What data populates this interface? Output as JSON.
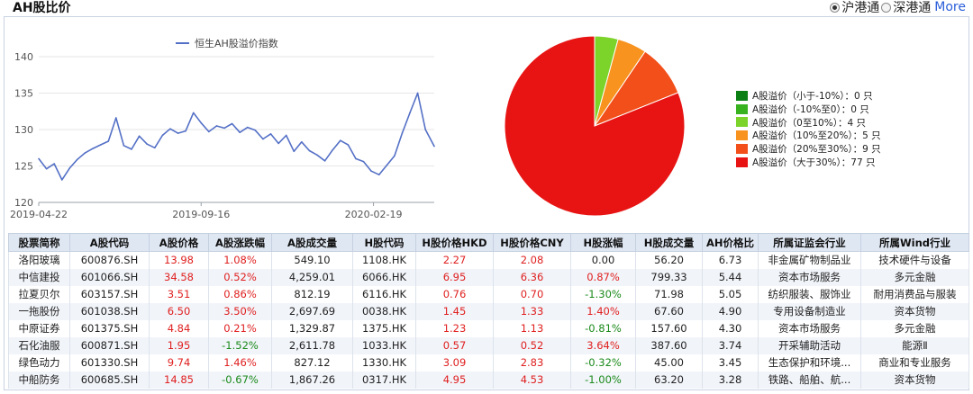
{
  "header": {
    "title": "AH股比价",
    "options": [
      "沪港通",
      "深港通"
    ],
    "selected_option": "沪港通",
    "more_label": "More"
  },
  "chart_data": [
    {
      "type": "line",
      "legend_label": "恒生AH股溢价指数",
      "legend_position": "top",
      "ylim": [
        120,
        140
      ],
      "yticks": [
        120,
        125,
        130,
        135,
        140
      ],
      "xtick_labels": [
        "2019-04-22",
        "2019-09-16",
        "2020-02-19"
      ],
      "xlim": [
        "2019-04-22",
        "2020-04-14"
      ],
      "grid": true,
      "color": "#5470c6",
      "series": [
        {
          "name": "恒生AH股溢价指数",
          "x": [
            "2019-04-22",
            "2019-04-29",
            "2019-05-06",
            "2019-05-13",
            "2019-05-20",
            "2019-05-27",
            "2019-06-03",
            "2019-06-10",
            "2019-06-17",
            "2019-06-24",
            "2019-07-01",
            "2019-07-08",
            "2019-07-15",
            "2019-07-22",
            "2019-07-29",
            "2019-08-05",
            "2019-08-12",
            "2019-08-19",
            "2019-08-26",
            "2019-09-02",
            "2019-09-09",
            "2019-09-16",
            "2019-09-23",
            "2019-09-30",
            "2019-10-07",
            "2019-10-14",
            "2019-10-21",
            "2019-10-28",
            "2019-11-04",
            "2019-11-11",
            "2019-11-18",
            "2019-11-25",
            "2019-12-02",
            "2019-12-09",
            "2019-12-16",
            "2019-12-23",
            "2019-12-30",
            "2020-01-06",
            "2020-01-13",
            "2020-01-20",
            "2020-01-27",
            "2020-02-03",
            "2020-02-10",
            "2020-02-17",
            "2020-02-24",
            "2020-03-02",
            "2020-03-09",
            "2020-03-16",
            "2020-03-23",
            "2020-03-30",
            "2020-04-06",
            "2020-04-14"
          ],
          "values": [
            126.0,
            124.6,
            125.3,
            123.1,
            124.7,
            125.9,
            126.8,
            127.4,
            127.9,
            128.4,
            131.6,
            127.8,
            127.3,
            129.1,
            128.0,
            127.5,
            129.2,
            130.1,
            129.5,
            129.8,
            132.3,
            130.9,
            129.7,
            130.5,
            130.2,
            130.8,
            129.6,
            130.3,
            129.9,
            128.7,
            129.4,
            128.1,
            129.2,
            127.0,
            128.3,
            127.1,
            126.5,
            125.7,
            127.2,
            128.5,
            127.9,
            126.0,
            125.6,
            124.3,
            123.8,
            125.1,
            126.4,
            129.5,
            132.3,
            135.0,
            130.0,
            127.7
          ]
        }
      ]
    },
    {
      "type": "pie",
      "legend_position": "right",
      "slices": [
        {
          "label": "A股溢价（小于-10%）：0 只",
          "value": 0,
          "color": "#0b7f14"
        },
        {
          "label": "A股溢价（-10%至0）：0 只",
          "value": 0,
          "color": "#39b21f"
        },
        {
          "label": "A股溢价（0至10%）：4 只",
          "value": 4,
          "color": "#7cd32a"
        },
        {
          "label": "A股溢价（10%至20%）：5 只",
          "value": 5,
          "color": "#f7931e"
        },
        {
          "label": "A股溢价（20%至30%）：9 只",
          "value": 9,
          "color": "#f24f1a"
        },
        {
          "label": "A股溢价（大于30%）：77 只",
          "value": 77,
          "color": "#e81414"
        }
      ]
    }
  ],
  "table": {
    "headers": [
      "股票简称",
      "A股代码",
      "A股价格",
      "A股涨跌幅",
      "A股成交量",
      "H股代码",
      "H股价格HKD",
      "H股价格CNY",
      "H股涨幅",
      "H股成交量",
      "AH价格比",
      "所属证监会行业",
      "所属Wind行业"
    ],
    "rows": [
      [
        "洛阳玻璃",
        "600876.SH",
        "13.98",
        "1.08%",
        "549.10",
        "1108.HK",
        "2.27",
        "2.08",
        "0.00",
        "56.20",
        "6.73",
        "非金属矿物制品业",
        "技术硬件与设备"
      ],
      [
        "中信建投",
        "601066.SH",
        "34.58",
        "0.52%",
        "4,259.01",
        "6066.HK",
        "6.95",
        "6.36",
        "0.87%",
        "799.33",
        "5.44",
        "资本市场服务",
        "多元金融"
      ],
      [
        "拉夏贝尔",
        "603157.SH",
        "3.51",
        "0.86%",
        "812.19",
        "6116.HK",
        "0.76",
        "0.70",
        "-1.30%",
        "71.98",
        "5.05",
        "纺织服装、服饰业",
        "耐用消费品与服装"
      ],
      [
        "一拖股份",
        "601038.SH",
        "6.50",
        "3.50%",
        "2,697.69",
        "0038.HK",
        "1.45",
        "1.33",
        "1.40%",
        "67.60",
        "4.90",
        "专用设备制造业",
        "资本货物"
      ],
      [
        "中原证券",
        "601375.SH",
        "4.84",
        "0.21%",
        "1,329.87",
        "1375.HK",
        "1.23",
        "1.13",
        "-0.81%",
        "157.60",
        "4.30",
        "资本市场服务",
        "多元金融"
      ],
      [
        "石化油服",
        "600871.SH",
        "1.95",
        "-1.52%",
        "2,611.78",
        "1033.HK",
        "0.57",
        "0.52",
        "3.64%",
        "387.60",
        "3.74",
        "开采辅助活动",
        "能源Ⅱ"
      ],
      [
        "绿色动力",
        "601330.SH",
        "9.74",
        "1.46%",
        "827.12",
        "1330.HK",
        "3.09",
        "2.83",
        "-0.32%",
        "45.00",
        "3.45",
        "生态保护和环境...",
        "商业和专业服务"
      ],
      [
        "中船防务",
        "600685.SH",
        "14.85",
        "-0.67%",
        "1,867.26",
        "0317.HK",
        "4.95",
        "4.53",
        "-1.00%",
        "63.20",
        "3.28",
        "铁路、船舶、航...",
        "资本货物"
      ]
    ],
    "column_colors": [
      "black",
      "black",
      "red",
      "mixed",
      "black",
      "black",
      "red",
      "red",
      "mixed",
      "black",
      "black",
      "black",
      "black"
    ]
  },
  "colors": {
    "header_bg": "#dfe7f3",
    "row_alt_bg": "#f1f4f9",
    "up": "#e02020",
    "down": "#1b8a1b",
    "line": "#5470c6",
    "link": "#2b5fd9"
  }
}
